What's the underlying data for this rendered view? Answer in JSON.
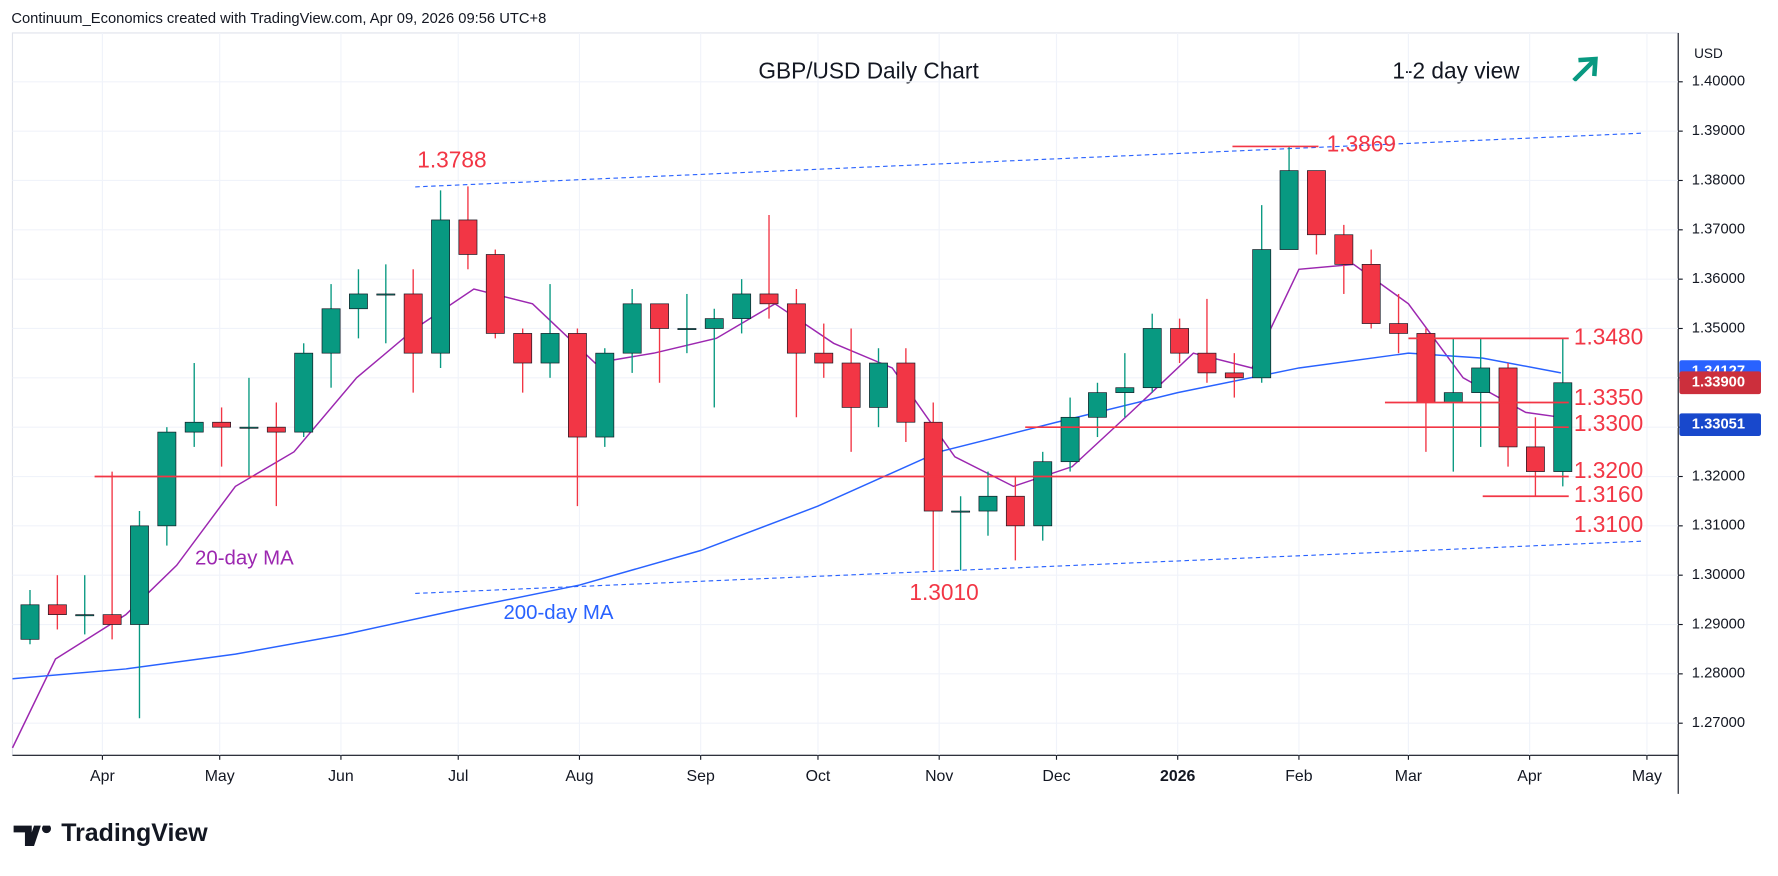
{
  "header": "Continuum_Economics created with TradingView.com, Apr 09, 2026 09:56 UTC+8",
  "brand": "TradingView",
  "chart_data": {
    "type": "candlestick",
    "title": "GBP/USD Daily Chart",
    "view": "1-2 day view",
    "y_axis_label": "USD",
    "up_color": "#089981",
    "down_color": "#f23645",
    "xlim": [
      "2025-03-09",
      "2026-05-09"
    ],
    "ylim": [
      1.2635,
      1.4099
    ],
    "grid": true,
    "xticks": [
      {
        "value": "2025-04-01",
        "label": "Apr"
      },
      {
        "value": "2025-05-01",
        "label": "May"
      },
      {
        "value": "2025-06-01",
        "label": "Jun"
      },
      {
        "value": "2025-07-01",
        "label": "Jul"
      },
      {
        "value": "2025-08-01",
        "label": "Aug"
      },
      {
        "value": "2025-09-01",
        "label": "Sep"
      },
      {
        "value": "2025-10-01",
        "label": "Oct"
      },
      {
        "value": "2025-11-01",
        "label": "Nov"
      },
      {
        "value": "2025-12-01",
        "label": "Dec"
      },
      {
        "value": "2026-01-01",
        "label": "2026"
      },
      {
        "value": "2026-02-01",
        "label": "Feb"
      },
      {
        "value": "2026-03-01",
        "label": "Mar"
      },
      {
        "value": "2026-04-01",
        "label": "Apr"
      },
      {
        "value": "2026-05-01",
        "label": "May"
      }
    ],
    "yticks": [
      {
        "value": 1.27,
        "label": "1.27000"
      },
      {
        "value": 1.28,
        "label": "1.28000"
      },
      {
        "value": 1.29,
        "label": "1.29000"
      },
      {
        "value": 1.3,
        "label": "1.30000"
      },
      {
        "value": 1.31,
        "label": "1.31000"
      },
      {
        "value": 1.32,
        "label": "1.32000"
      },
      {
        "value": 1.33,
        "label": "1.33000"
      },
      {
        "value": 1.34,
        "label": "1.34000"
      },
      {
        "value": 1.35,
        "label": "1.35000"
      },
      {
        "value": 1.36,
        "label": "1.36000"
      },
      {
        "value": 1.37,
        "label": "1.37000"
      },
      {
        "value": 1.38,
        "label": "1.38000"
      },
      {
        "value": 1.39,
        "label": "1.39000"
      },
      {
        "value": 1.4,
        "label": "1.40000"
      }
    ],
    "x": [
      "2025-03-10",
      "2025-03-17",
      "2025-03-24",
      "2025-03-31",
      "2025-04-07",
      "2025-04-14",
      "2025-04-21",
      "2025-04-28",
      "2025-05-05",
      "2025-05-12",
      "2025-05-19",
      "2025-05-26",
      "2025-06-02",
      "2025-06-09",
      "2025-06-16",
      "2025-06-23",
      "2025-06-30",
      "2025-07-07",
      "2025-07-14",
      "2025-07-21",
      "2025-07-28",
      "2025-08-04",
      "2025-08-11",
      "2025-08-18",
      "2025-08-25",
      "2025-09-01",
      "2025-09-08",
      "2025-09-15",
      "2025-09-22",
      "2025-09-29",
      "2025-10-06",
      "2025-10-13",
      "2025-10-20",
      "2025-10-27",
      "2025-11-03",
      "2025-11-10",
      "2025-11-17",
      "2025-11-24",
      "2025-12-01",
      "2025-12-08",
      "2025-12-15",
      "2025-12-22",
      "2025-12-29",
      "2026-01-05",
      "2026-01-12",
      "2026-01-19",
      "2026-01-26",
      "2026-02-02",
      "2026-02-09",
      "2026-02-16",
      "2026-02-23",
      "2026-03-02",
      "2026-03-09",
      "2026-03-16",
      "2026-03-23",
      "2026-03-30",
      "2026-04-06"
    ],
    "open": [
      1.287,
      1.294,
      1.292,
      1.292,
      1.29,
      1.31,
      1.329,
      1.331,
      1.33,
      1.33,
      1.329,
      1.345,
      1.354,
      1.357,
      1.357,
      1.345,
      1.372,
      1.365,
      1.349,
      1.343,
      1.349,
      1.328,
      1.345,
      1.355,
      1.35,
      1.35,
      1.352,
      1.357,
      1.355,
      1.345,
      1.343,
      1.334,
      1.343,
      1.331,
      1.313,
      1.313,
      1.316,
      1.31,
      1.323,
      1.332,
      1.337,
      1.338,
      1.35,
      1.345,
      1.341,
      1.34,
      1.366,
      1.382,
      1.369,
      1.363,
      1.351,
      1.349,
      1.335,
      1.337,
      1.342,
      1.326,
      1.321
    ],
    "high": [
      1.297,
      1.3,
      1.3,
      1.321,
      1.313,
      1.33,
      1.343,
      1.334,
      1.34,
      1.335,
      1.347,
      1.359,
      1.362,
      1.363,
      1.362,
      1.378,
      1.3788,
      1.366,
      1.35,
      1.359,
      1.35,
      1.346,
      1.358,
      1.355,
      1.357,
      1.354,
      1.36,
      1.373,
      1.358,
      1.351,
      1.35,
      1.346,
      1.346,
      1.335,
      1.316,
      1.321,
      1.32,
      1.325,
      1.336,
      1.339,
      1.345,
      1.353,
      1.352,
      1.356,
      1.345,
      1.375,
      1.3869,
      1.382,
      1.371,
      1.366,
      1.357,
      1.35,
      1.348,
      1.348,
      1.343,
      1.332,
      1.348
    ],
    "low": [
      1.286,
      1.289,
      1.288,
      1.287,
      1.271,
      1.306,
      1.326,
      1.322,
      1.32,
      1.314,
      1.328,
      1.338,
      1.348,
      1.347,
      1.337,
      1.342,
      1.362,
      1.348,
      1.337,
      1.34,
      1.314,
      1.326,
      1.341,
      1.339,
      1.345,
      1.334,
      1.349,
      1.352,
      1.332,
      1.34,
      1.325,
      1.33,
      1.327,
      1.301,
      1.301,
      1.308,
      1.303,
      1.307,
      1.321,
      1.328,
      1.332,
      1.337,
      1.343,
      1.339,
      1.336,
      1.339,
      1.366,
      1.365,
      1.357,
      1.35,
      1.345,
      1.325,
      1.321,
      1.326,
      1.322,
      1.316,
      1.318
    ],
    "close": [
      1.294,
      1.292,
      1.292,
      1.29,
      1.31,
      1.329,
      1.331,
      1.33,
      1.33,
      1.329,
      1.345,
      1.354,
      1.357,
      1.357,
      1.345,
      1.372,
      1.365,
      1.349,
      1.343,
      1.349,
      1.328,
      1.345,
      1.355,
      1.35,
      1.35,
      1.352,
      1.357,
      1.355,
      1.345,
      1.343,
      1.334,
      1.343,
      1.331,
      1.313,
      1.313,
      1.316,
      1.31,
      1.323,
      1.332,
      1.337,
      1.338,
      1.35,
      1.345,
      1.341,
      1.34,
      1.366,
      1.382,
      1.369,
      1.363,
      1.351,
      1.349,
      1.335,
      1.337,
      1.342,
      1.326,
      1.321,
      1.339
    ],
    "series": [
      {
        "name": "20-day MA",
        "color": "#9c27b0",
        "x": [
          "2025-03-09",
          "2025-03-20",
          "2025-04-07",
          "2025-04-20",
          "2025-05-05",
          "2025-05-20",
          "2025-06-05",
          "2025-06-20",
          "2025-07-05",
          "2025-07-20",
          "2025-08-05",
          "2025-08-20",
          "2025-09-05",
          "2025-09-20",
          "2025-10-05",
          "2025-10-20",
          "2025-11-05",
          "2025-11-20",
          "2025-12-05",
          "2025-12-20",
          "2026-01-05",
          "2026-01-20",
          "2026-02-01",
          "2026-02-15",
          "2026-03-01",
          "2026-03-15",
          "2026-03-31",
          "2026-04-09"
        ],
        "values": [
          1.265,
          1.283,
          1.292,
          1.302,
          1.318,
          1.325,
          1.34,
          1.35,
          1.358,
          1.355,
          1.343,
          1.345,
          1.348,
          1.355,
          1.347,
          1.342,
          1.324,
          1.318,
          1.322,
          1.333,
          1.345,
          1.342,
          1.362,
          1.363,
          1.355,
          1.34,
          1.333,
          1.332
        ]
      },
      {
        "name": "200-day MA",
        "color": "#2962ff",
        "x": [
          "2025-03-09",
          "2025-04-07",
          "2025-05-05",
          "2025-06-02",
          "2025-07-01",
          "2025-08-01",
          "2025-09-01",
          "2025-10-01",
          "2025-11-01",
          "2025-12-01",
          "2026-01-01",
          "2026-02-01",
          "2026-03-01",
          "2026-03-20",
          "2026-04-09"
        ],
        "values": [
          1.279,
          1.281,
          1.284,
          1.288,
          1.293,
          1.298,
          1.305,
          1.314,
          1.325,
          1.331,
          1.337,
          1.342,
          1.345,
          1.344,
          1.341
        ]
      }
    ],
    "trendlines": [
      {
        "x": [
          "2025-06-20",
          "2026-04-30"
        ],
        "values": [
          1.3787,
          1.3896
        ]
      },
      {
        "x": [
          "2025-06-20",
          "2026-04-30"
        ],
        "values": [
          1.2963,
          1.3069
        ]
      }
    ],
    "levels": [
      {
        "value": 1.3869,
        "label": "1.3869",
        "line": [
          "2026-01-15",
          "2026-02-06"
        ]
      },
      {
        "value": 1.3788,
        "label": "1.3788"
      },
      {
        "value": 1.348,
        "label": "1.3480",
        "line": [
          "2026-03-01",
          "2026-04-11"
        ]
      },
      {
        "value": 1.335,
        "label": "1.3350",
        "line": [
          "2026-02-23",
          "2026-04-11"
        ]
      },
      {
        "value": 1.33,
        "label": "1.3300",
        "line": [
          "2025-11-23",
          "2026-04-11"
        ]
      },
      {
        "value": 1.32,
        "label": "1.3200",
        "line": [
          "2025-03-30",
          "2026-04-11"
        ]
      },
      {
        "value": 1.316,
        "label": "1.3160",
        "line": [
          "2026-03-20",
          "2026-04-11"
        ]
      },
      {
        "value": 1.31,
        "label": "1.3100"
      },
      {
        "value": 1.301,
        "label": "1.3010"
      }
    ],
    "price_labels": [
      {
        "value": 1.34127,
        "label": "1.34127",
        "color": "#2962ff"
      },
      {
        "value": 1.339,
        "label": "1.33900",
        "color": "#cc2f3c"
      },
      {
        "value": 1.33051,
        "label": "1.33051",
        "color": "#1848cc"
      }
    ]
  }
}
